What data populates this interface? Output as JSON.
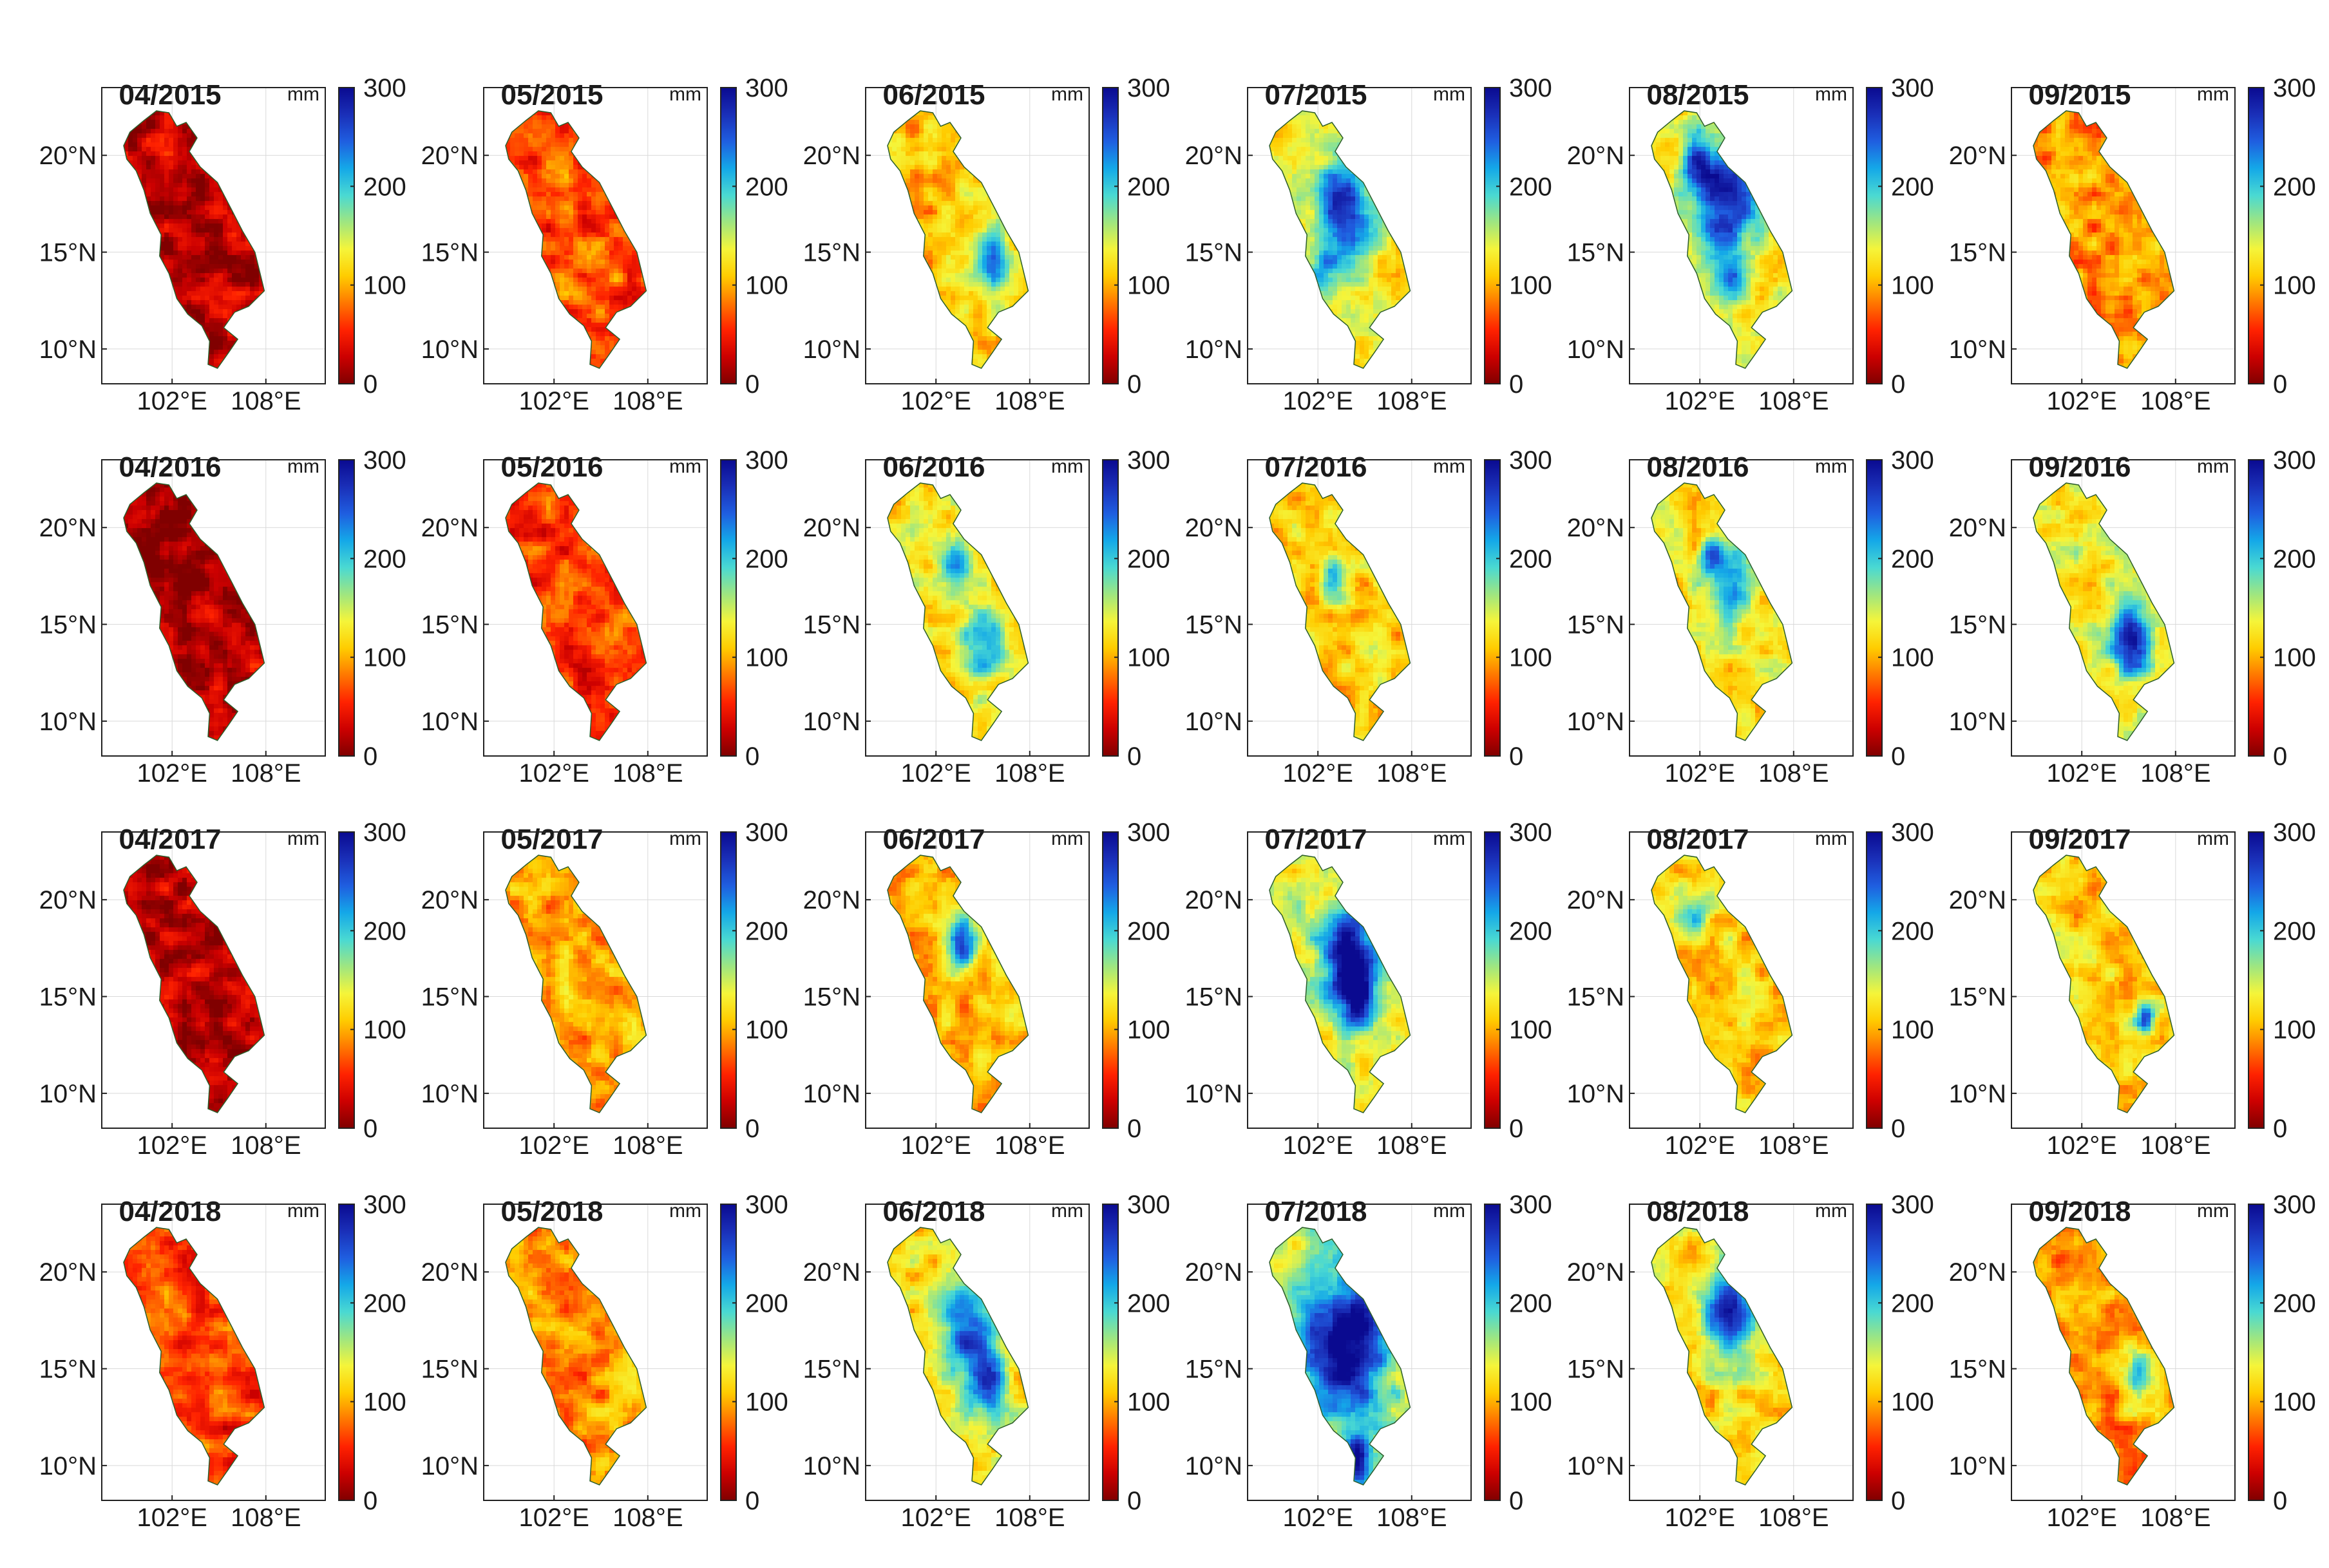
{
  "figure": {
    "unit": "mm",
    "colorbar": {
      "min": 0,
      "max": 300,
      "ticks": [
        "0",
        "100",
        "200",
        "300"
      ],
      "colormap": [
        "#800000",
        "#cc0000",
        "#ff2200",
        "#ff7700",
        "#ffcc00",
        "#f5f53a",
        "#9fe680",
        "#4ad9d2",
        "#14a8e8",
        "#1f5ee0",
        "#1a2fb8",
        "#0a0a90"
      ]
    },
    "lat_ticks": [
      "10°N",
      "15°N",
      "20°N"
    ],
    "lon_ticks": [
      "102°E",
      "108°E"
    ],
    "panels": [
      {
        "title": "04/2015",
        "level": 0.08,
        "wet": []
      },
      {
        "title": "05/2015",
        "level": 0.22,
        "wet": []
      },
      {
        "title": "06/2015",
        "level": 0.36,
        "wet": [
          [
            0.72,
            0.58,
            0.1,
            0.8
          ]
        ]
      },
      {
        "title": "07/2015",
        "level": 0.42,
        "wet": [
          [
            0.52,
            0.36,
            0.14,
            1.0
          ],
          [
            0.35,
            0.64,
            0.08,
            0.5
          ]
        ]
      },
      {
        "title": "08/2015",
        "level": 0.42,
        "wet": [
          [
            0.52,
            0.34,
            0.15,
            1.0
          ],
          [
            0.3,
            0.18,
            0.08,
            0.8
          ],
          [
            0.55,
            0.66,
            0.07,
            0.5
          ]
        ]
      },
      {
        "title": "09/2015",
        "level": 0.3,
        "wet": []
      },
      {
        "title": "04/2016",
        "level": 0.06,
        "wet": []
      },
      {
        "title": "05/2016",
        "level": 0.2,
        "wet": []
      },
      {
        "title": "06/2016",
        "level": 0.42,
        "wet": [
          [
            0.45,
            0.3,
            0.08,
            0.6
          ],
          [
            0.66,
            0.6,
            0.1,
            0.6
          ]
        ]
      },
      {
        "title": "07/2016",
        "level": 0.38,
        "wet": [
          [
            0.44,
            0.36,
            0.06,
            0.5
          ]
        ]
      },
      {
        "title": "08/2016",
        "level": 0.42,
        "wet": [
          [
            0.55,
            0.36,
            0.1,
            0.7
          ],
          [
            0.4,
            0.28,
            0.06,
            0.5
          ]
        ]
      },
      {
        "title": "09/2016",
        "level": 0.44,
        "wet": [
          [
            0.68,
            0.6,
            0.1,
            0.9
          ]
        ]
      },
      {
        "title": "04/2017",
        "level": 0.07,
        "wet": []
      },
      {
        "title": "05/2017",
        "level": 0.33,
        "wet": []
      },
      {
        "title": "06/2017",
        "level": 0.34,
        "wet": [
          [
            0.5,
            0.34,
            0.09,
            0.8
          ]
        ]
      },
      {
        "title": "07/2017",
        "level": 0.46,
        "wet": [
          [
            0.55,
            0.4,
            0.14,
            1.0
          ],
          [
            0.6,
            0.55,
            0.07,
            0.7
          ]
        ]
      },
      {
        "title": "08/2017",
        "level": 0.38,
        "wet": [
          [
            0.3,
            0.22,
            0.07,
            0.6
          ]
        ]
      },
      {
        "title": "09/2017",
        "level": 0.38,
        "wet": [
          [
            0.78,
            0.62,
            0.05,
            0.9
          ]
        ]
      },
      {
        "title": "04/2018",
        "level": 0.2,
        "wet": []
      },
      {
        "title": "05/2018",
        "level": 0.3,
        "wet": []
      },
      {
        "title": "06/2018",
        "level": 0.4,
        "wet": [
          [
            0.55,
            0.4,
            0.14,
            0.8
          ],
          [
            0.7,
            0.62,
            0.09,
            0.8
          ]
        ]
      },
      {
        "title": "07/2018",
        "level": 0.48,
        "wet": [
          [
            0.52,
            0.44,
            0.2,
            1.1
          ],
          [
            0.6,
            0.9,
            0.06,
            1.0
          ]
        ]
      },
      {
        "title": "08/2018",
        "level": 0.4,
        "wet": [
          [
            0.55,
            0.3,
            0.14,
            0.9
          ]
        ]
      },
      {
        "title": "09/2018",
        "level": 0.3,
        "wet": [
          [
            0.72,
            0.58,
            0.08,
            0.7
          ]
        ]
      }
    ]
  }
}
